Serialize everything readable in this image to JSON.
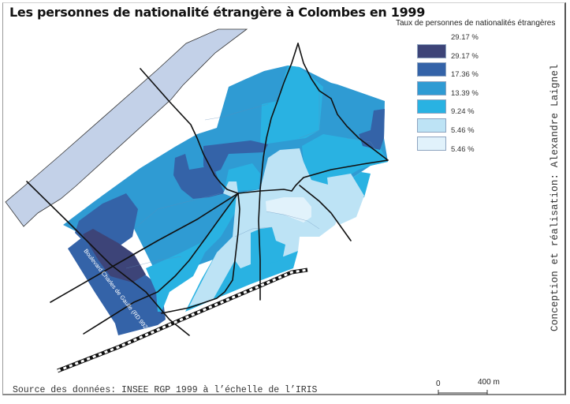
{
  "title": "Les personnes de nationalité étrangère à  Colombes en 1999",
  "legend": {
    "title": "Taux de personnes de nationalités étrangères",
    "top_label": "29.17 %",
    "classes": [
      {
        "color": "#3d4478",
        "label": "29.17 %"
      },
      {
        "color": "#3463a8",
        "label": "17.36 %"
      },
      {
        "color": "#2f9bd3",
        "label": "13.39 %"
      },
      {
        "color": "#29b2e2",
        "label": "9.24 %"
      },
      {
        "color": "#bde3f5",
        "label": "5.46 %"
      },
      {
        "color": "#e1f2fb",
        "label": "5.46 %"
      }
    ]
  },
  "map": {
    "road_label": "Boulevard Charles de Gaulle (RD 992)",
    "river_color": "#c3d1e8"
  },
  "credit": "Conception et réalisation: Alexandre Laignel",
  "source": "Source des données: INSEE RGP 1999 à l’échelle de l’IRIS",
  "scale": {
    "start": "0",
    "end": "400 m"
  }
}
